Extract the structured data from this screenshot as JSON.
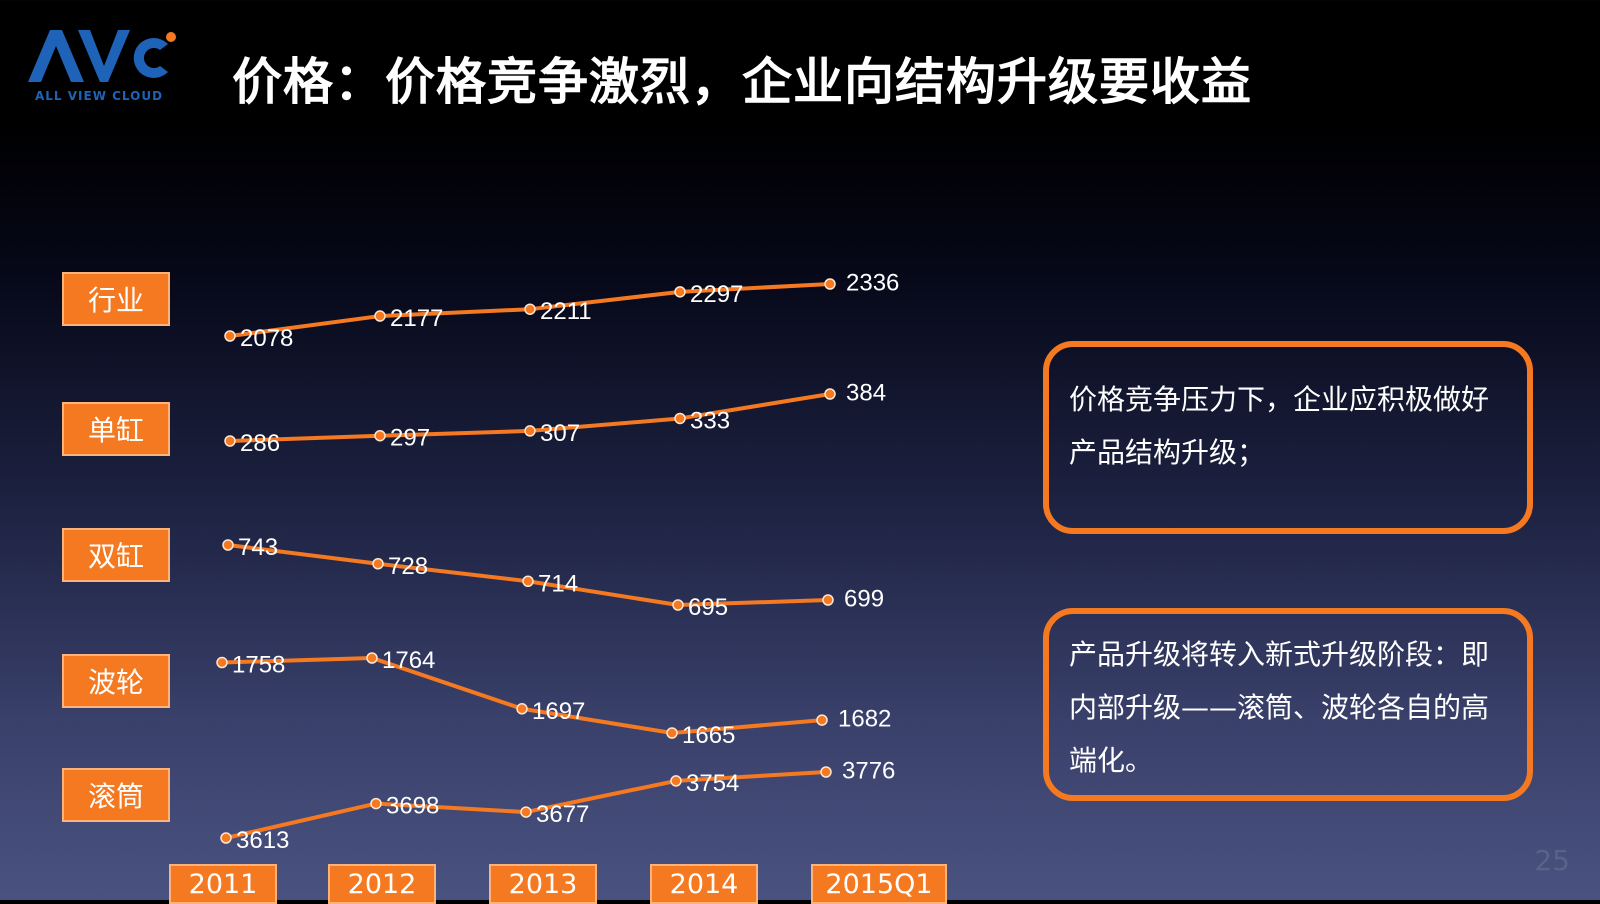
{
  "brand": {
    "logo_letters": "AVC",
    "logo_tagline": "ALL VIEW CLOUD"
  },
  "title": "价格：价格竞争激烈，企业向结构升级要收益",
  "notes": [
    {
      "text": "价格竞争压力下，企业应积极做好产品结构升级；"
    },
    {
      "text": "产品升级将转入新式升级阶段：即内部升级——滚筒、波轮各自的高端化。"
    }
  ],
  "page_number": "25",
  "colors": {
    "accent": "#f47920",
    "text": "#ffffff",
    "background": "#000000"
  },
  "chart_data": {
    "type": "line",
    "categories": [
      "2011",
      "2012",
      "2013",
      "2014",
      "2015Q1"
    ],
    "series": [
      {
        "name": "行业",
        "values": [
          2078,
          2177,
          2211,
          2297,
          2336
        ]
      },
      {
        "name": "单缸",
        "values": [
          286,
          297,
          307,
          333,
          384
        ]
      },
      {
        "name": "双缸",
        "values": [
          743,
          728,
          714,
          695,
          699
        ]
      },
      {
        "name": "波轮",
        "values": [
          1758,
          1764,
          1697,
          1665,
          1682
        ]
      },
      {
        "name": "滚筒",
        "values": [
          3613,
          3698,
          3677,
          3754,
          3776
        ]
      }
    ],
    "grid": false,
    "legend": "left"
  }
}
